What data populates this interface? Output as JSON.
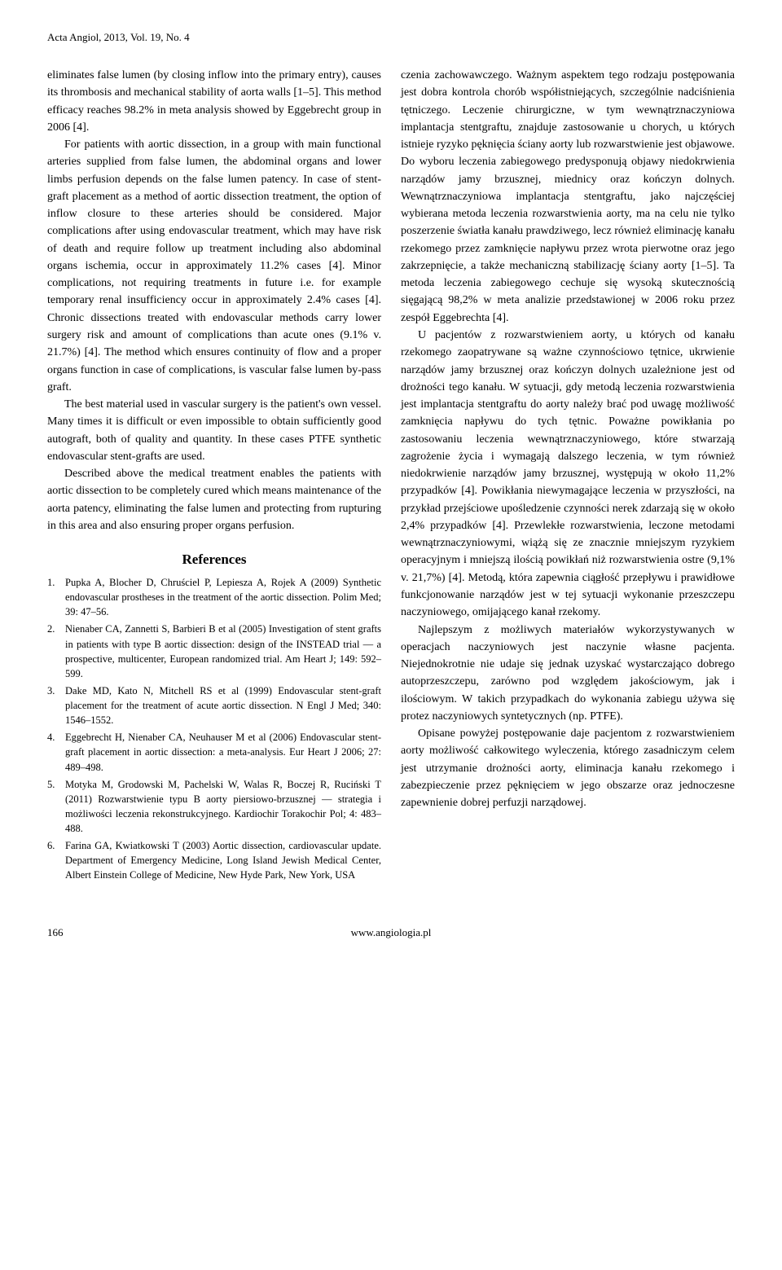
{
  "header": "Acta Angiol, 2013, Vol. 19, No. 4",
  "left": {
    "p1": "eliminates false lumen (by closing inflow into the primary entry), causes its thrombosis and mechanical stability of aorta walls [1–5]. This method efficacy reaches 98.2% in meta analysis showed by Eggebrecht group in 2006 [4].",
    "p2": "For patients with aortic dissection, in a group with main functional arteries supplied from false lumen, the abdominal organs and lower limbs perfusion depends on the false lumen patency. In case of stent-graft placement as a method of aortic dissection treatment, the option of inflow closure to these arteries should be considered. Major complications after using endovascular treatment, which may have risk of death and require follow up treatment including also abdominal organs ischemia, occur in approximately 11.2% cases [4]. Minor complications, not requiring treatments in future i.e. for example temporary renal insufficiency occur in approximately 2.4% cases [4]. Chronic dissections treated with endovascular methods carry lower surgery risk and amount of complications than acute ones (9.1% v. 21.7%) [4]. The method which ensures continuity of flow and a proper organs function in case of complications, is vascular false lumen by-pass graft.",
    "p3": "The best material used in vascular surgery is the patient's own vessel. Many times it is difficult or even impossible to obtain sufficiently good autograft, both of quality and quantity. In these cases PTFE synthetic endovascular stent-grafts are used.",
    "p4": "Described above the medical treatment enables the patients with aortic dissection to be completely cured which means maintenance of the aorta patency, eliminating the false lumen and protecting from rupturing in this area and also ensuring proper organs perfusion.",
    "refsHeading": "References",
    "refs": [
      "Pupka A, Blocher D, Chruściel P, Lepiesza A, Rojek A (2009) Synthetic endovascular prostheses in the treatment of the aortic dissection. Polim Med; 39: 47–56.",
      "Nienaber CA, Zannetti S, Barbieri B et al (2005) Investigation of stent grafts in patients with type B aortic dissection: design of the INSTEAD trial — a prospective, multicenter, European randomized trial. Am Heart J; 149: 592–599.",
      "Dake MD, Kato N, Mitchell RS et al (1999) Endovascular stent-graft placement for the treatment of acute aortic dissection. N Engl J Med; 340: 1546–1552.",
      "Eggebrecht H, Nienaber CA, Neuhauser M et al (2006) Endovascular stent-graft placement in aortic dissection: a meta-analysis. Eur Heart J 2006; 27: 489–498.",
      "Motyka M, Grodowski M, Pachelski W, Walas R, Boczej R, Ruciński T (2011) Rozwarstwienie typu B aorty piersiowo-brzusznej — strategia i możliwości leczenia rekonstrukcyjnego. Kardiochir Torakochir Pol; 4: 483–488.",
      "Farina GA, Kwiatkowski T (2003) Aortic dissection, cardiovascular update. Department of Emergency Medicine, Long Island Jewish Medical Center, Albert Einstein College of Medicine, New Hyde Park, New York, USA"
    ]
  },
  "right": {
    "p1": "czenia zachowawczego. Ważnym aspektem tego rodzaju postępowania jest dobra kontrola chorób współistniejących, szczególnie nadciśnienia tętniczego. Leczenie chirurgiczne, w tym wewnątrznaczyniowa implantacja stentgraftu, znajduje zastosowanie u chorych, u których istnieje ryzyko pęknięcia ściany aorty lub rozwarstwienie jest objawowe. Do wyboru leczenia zabiegowego predysponują objawy niedokrwienia narządów jamy brzusznej, miednicy oraz kończyn dolnych. Wewnątrznaczyniowa implantacja stentgraftu, jako najczęściej wybierana metoda leczenia rozwarstwienia aorty, ma na celu nie tylko poszerzenie światła kanału prawdziwego, lecz również eliminację kanału rzekomego przez zamknięcie napływu przez wrota pierwotne oraz jego zakrzepnięcie, a także mechaniczną stabilizację ściany aorty [1–5]. Ta metoda leczenia zabiegowego cechuje się wysoką skutecznością sięgającą 98,2% w meta analizie przedstawionej w 2006 roku przez zespół Eggebrechta [4].",
    "p2": "U pacjentów z rozwarstwieniem aorty, u których od kanału rzekomego zaopatrywane są ważne czynnościowo tętnice, ukrwienie narządów jamy brzusznej oraz kończyn dolnych uzależnione jest od drożności tego kanału. W sytuacji, gdy metodą leczenia rozwarstwienia jest implantacja stentgraftu do aorty należy brać pod uwagę możliwość zamknięcia napływu do tych tętnic. Poważne powikłania po zastosowaniu leczenia wewnątrznaczyniowego, które stwarzają zagrożenie życia i wymagają dalszego leczenia, w tym również niedokrwienie narządów jamy brzusznej, występują w około 11,2% przypadków [4]. Powikłania niewymagające leczenia w przyszłości, na przykład przejściowe upośledzenie czynności nerek zdarzają się w około 2,4% przypadków [4]. Przewlekłe rozwarstwienia, leczone metodami wewnątrznaczyniowymi, wiążą się ze znacznie mniejszym ryzykiem operacyjnym i mniejszą ilością powikłań niż rozwarstwienia ostre (9,1% v. 21,7%) [4]. Metodą, która zapewnia ciągłość przepływu i prawidłowe funkcjonowanie narządów jest w tej sytuacji wykonanie przeszczepu naczyniowego, omijającego kanał rzekomy.",
    "p3": "Najlepszym z możliwych materiałów wykorzystywanych w operacjach naczyniowych jest naczynie własne pacjenta. Niejednokrotnie nie udaje się jednak uzyskać wystarczająco dobrego autoprzeszczepu, zarówno pod względem jakościowym, jak i ilościowym. W takich przypadkach do wykonania zabiegu używa się protez naczyniowych syntetycznych (np. PTFE).",
    "p4": "Opisane powyżej postępowanie daje pacjentom z rozwarstwieniem aorty możliwość całkowitego wyleczenia, którego zasadniczym celem jest utrzymanie drożności aorty, eliminacja kanału rzekomego i zabezpieczenie przez pęknięciem w jego obszarze oraz jednoczesne zapewnienie dobrej perfuzji narządowej."
  },
  "footer": {
    "page": "166",
    "site": "www.angiologia.pl"
  }
}
